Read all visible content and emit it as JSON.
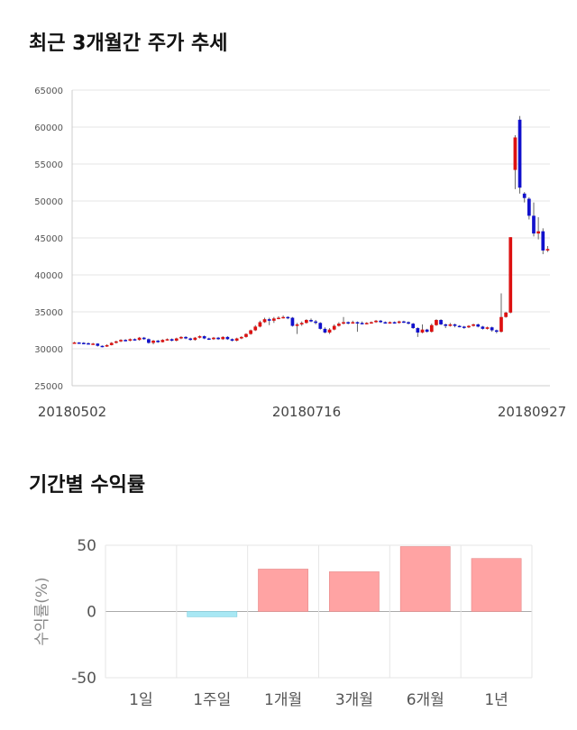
{
  "sections": {
    "stock_title": "최근 3개월간 주가 추세",
    "return_title": "기간별 수익률"
  },
  "chart_data": [
    {
      "type": "candlestick",
      "title": "최근 3개월간 주가 추세",
      "ylim": [
        25000,
        65000
      ],
      "y_ticks": [
        25000,
        30000,
        35000,
        40000,
        45000,
        50000,
        55000,
        60000,
        65000
      ],
      "x_tick_labels": [
        "20180502",
        "20180716",
        "20180927"
      ],
      "grid": true,
      "colors": {
        "up": "#dd1111",
        "down": "#1111cc",
        "wick": "#666666",
        "grid": "#e6e6e6"
      },
      "candles": [
        [
          30800,
          30850,
          30950,
          30700
        ],
        [
          30850,
          30800,
          30900,
          30700
        ],
        [
          30800,
          30750,
          30900,
          30600
        ],
        [
          30750,
          30700,
          30850,
          30600
        ],
        [
          30700,
          30700,
          30800,
          30600
        ],
        [
          30700,
          30400,
          30750,
          30300
        ],
        [
          30400,
          30300,
          30450,
          30200
        ],
        [
          30300,
          30500,
          30600,
          30250
        ],
        [
          30500,
          30800,
          30900,
          30450
        ],
        [
          30800,
          31000,
          31100,
          30700
        ],
        [
          31000,
          31200,
          31300,
          30900
        ],
        [
          31200,
          31100,
          31300,
          31000
        ],
        [
          31100,
          31300,
          31400,
          31000
        ],
        [
          31300,
          31200,
          31400,
          31100
        ],
        [
          31200,
          31500,
          31600,
          31100
        ],
        [
          31500,
          31300,
          31600,
          31200
        ],
        [
          31300,
          30800,
          31400,
          30700
        ],
        [
          30800,
          31100,
          31200,
          30600
        ],
        [
          31100,
          30900,
          31200,
          30800
        ],
        [
          30900,
          31200,
          31300,
          30850
        ],
        [
          31200,
          31300,
          31400,
          31100
        ],
        [
          31300,
          31100,
          31400,
          31000
        ],
        [
          31100,
          31400,
          31500,
          31000
        ],
        [
          31400,
          31600,
          31700,
          31300
        ],
        [
          31600,
          31400,
          31700,
          31300
        ],
        [
          31400,
          31200,
          31500,
          31100
        ],
        [
          31200,
          31500,
          31600,
          31100
        ],
        [
          31500,
          31700,
          31800,
          31400
        ],
        [
          31700,
          31400,
          31800,
          31300
        ],
        [
          31400,
          31300,
          31500,
          31200
        ],
        [
          31300,
          31500,
          31600,
          31200
        ],
        [
          31500,
          31300,
          31600,
          31200
        ],
        [
          31300,
          31600,
          31700,
          31200
        ],
        [
          31600,
          31300,
          31700,
          31200
        ],
        [
          31300,
          31100,
          31400,
          31000
        ],
        [
          31100,
          31400,
          31500,
          31000
        ],
        [
          31400,
          31600,
          31700,
          31300
        ],
        [
          31600,
          32000,
          32100,
          31500
        ],
        [
          32000,
          32500,
          32600,
          31900
        ],
        [
          32500,
          33000,
          33200,
          32400
        ],
        [
          33000,
          33600,
          33800,
          32900
        ],
        [
          33600,
          34000,
          34200,
          33500
        ],
        [
          34000,
          33800,
          34200,
          33200
        ],
        [
          33800,
          34100,
          34300,
          33500
        ],
        [
          34100,
          34200,
          34400,
          34000
        ],
        [
          34200,
          34300,
          34500,
          34100
        ],
        [
          34300,
          34200,
          34400,
          34000
        ],
        [
          34200,
          33100,
          34300,
          33000
        ],
        [
          33100,
          33300,
          33500,
          32000
        ],
        [
          33300,
          33500,
          33700,
          33100
        ],
        [
          33500,
          33900,
          34000,
          33400
        ],
        [
          33900,
          33700,
          34100,
          33600
        ],
        [
          33700,
          33500,
          33900,
          33300
        ],
        [
          33500,
          32700,
          33600,
          32600
        ],
        [
          32700,
          32200,
          32900,
          32100
        ],
        [
          32200,
          32600,
          32800,
          32000
        ],
        [
          32600,
          33100,
          33300,
          32500
        ],
        [
          33100,
          33400,
          33600,
          33000
        ],
        [
          33400,
          33600,
          34300,
          33300
        ],
        [
          33600,
          33500,
          33700,
          33300
        ],
        [
          33500,
          33600,
          33800,
          33400
        ],
        [
          33600,
          33500,
          33700,
          32300
        ],
        [
          33500,
          33400,
          33700,
          33300
        ],
        [
          33400,
          33500,
          33600,
          33300
        ],
        [
          33500,
          33600,
          33700,
          33400
        ],
        [
          33600,
          33800,
          33900,
          33500
        ],
        [
          33800,
          33600,
          33900,
          33500
        ],
        [
          33600,
          33500,
          33700,
          33400
        ],
        [
          33500,
          33600,
          33700,
          33400
        ],
        [
          33600,
          33500,
          33700,
          33400
        ],
        [
          33500,
          33700,
          33800,
          33400
        ],
        [
          33700,
          33600,
          33800,
          33500
        ],
        [
          33600,
          33400,
          33700,
          33300
        ],
        [
          33400,
          32800,
          33500,
          32700
        ],
        [
          32800,
          32200,
          32900,
          31600
        ],
        [
          32200,
          32600,
          33300,
          32100
        ],
        [
          32600,
          32300,
          32700,
          32200
        ],
        [
          32300,
          33200,
          33400,
          32200
        ],
        [
          33200,
          33900,
          34000,
          33100
        ],
        [
          33900,
          33300,
          34000,
          33200
        ],
        [
          33300,
          33100,
          33400,
          32800
        ],
        [
          33100,
          33300,
          33500,
          33000
        ],
        [
          33300,
          33100,
          33400,
          32900
        ],
        [
          33100,
          33000,
          33200,
          32900
        ],
        [
          33000,
          32900,
          33100,
          32700
        ],
        [
          32900,
          33100,
          33200,
          32800
        ],
        [
          33100,
          33300,
          33400,
          33000
        ],
        [
          33300,
          33000,
          33400,
          32900
        ],
        [
          33000,
          32700,
          33100,
          32600
        ],
        [
          32700,
          32900,
          33000,
          32600
        ],
        [
          32900,
          32500,
          33000,
          32300
        ],
        [
          32500,
          32300,
          32600,
          32100
        ],
        [
          32300,
          34300,
          37500,
          32200
        ],
        [
          34300,
          34900,
          35000,
          34200
        ],
        [
          34900,
          45100,
          45100,
          34800
        ],
        [
          54200,
          58600,
          58900,
          51600
        ],
        [
          61000,
          51800,
          61500,
          51000
        ],
        [
          51000,
          50400,
          51200,
          49800
        ],
        [
          50300,
          48000,
          50500,
          47500
        ],
        [
          48000,
          45600,
          49800,
          45200
        ],
        [
          45600,
          45900,
          47800,
          44800
        ],
        [
          45900,
          43300,
          46300,
          42800
        ],
        [
          43300,
          43500,
          43900,
          43100
        ]
      ]
    },
    {
      "type": "bar",
      "title": "기간별 수익률",
      "ylabel": "수익률(%)",
      "categories": [
        "1일",
        "1주일",
        "1개월",
        "3개월",
        "6개월",
        "1년"
      ],
      "values": [
        0,
        -4,
        32,
        30,
        49,
        40
      ],
      "ylim": [
        -50,
        50
      ],
      "y_ticks": [
        -50,
        0,
        50
      ],
      "grid": true,
      "colors": {
        "positive": "#ffa3a3",
        "negative": "#a8e8f4",
        "grid": "#e6e6e6"
      }
    }
  ]
}
